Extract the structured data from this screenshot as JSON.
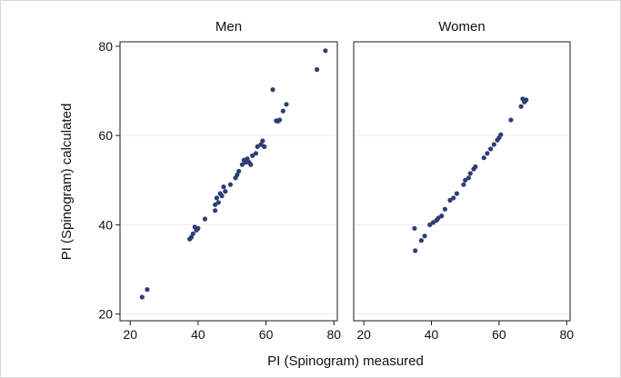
{
  "chart_data": {
    "type": "scatter",
    "xlabel": "PI (Spinogram) measured",
    "ylabel": "PI (Spinogram) calculated",
    "xlim": [
      20,
      80
    ],
    "ylim": [
      20,
      80
    ],
    "xticks": [
      "20",
      "40",
      "60",
      "80"
    ],
    "yticks": [
      "20",
      "40",
      "60",
      "80"
    ],
    "grid": true,
    "marker_color": "#2c3e73",
    "panels": [
      {
        "title": "Men",
        "points": [
          [
            23.5,
            23.8
          ],
          [
            25,
            25.5
          ],
          [
            37.5,
            36.8
          ],
          [
            38,
            37.2
          ],
          [
            38.5,
            38
          ],
          [
            39,
            39.5
          ],
          [
            39.5,
            38.8
          ],
          [
            40,
            39.2
          ],
          [
            42,
            41.3
          ],
          [
            45,
            43.2
          ],
          [
            45,
            44.5
          ],
          [
            45.5,
            46
          ],
          [
            46,
            45
          ],
          [
            46.5,
            47
          ],
          [
            47,
            46.5
          ],
          [
            47.5,
            48.5
          ],
          [
            48,
            47.5
          ],
          [
            49.5,
            49
          ],
          [
            51,
            50.5
          ],
          [
            51.5,
            51.2
          ],
          [
            52,
            52
          ],
          [
            53,
            53.5
          ],
          [
            53.5,
            54.5
          ],
          [
            54,
            54
          ],
          [
            54.5,
            54.8
          ],
          [
            55,
            54
          ],
          [
            55.5,
            53.5
          ],
          [
            56,
            55.5
          ],
          [
            57,
            56
          ],
          [
            57.5,
            57.5
          ],
          [
            58.5,
            58
          ],
          [
            59,
            58.8
          ],
          [
            59.5,
            57.5
          ],
          [
            62,
            70.3
          ],
          [
            63,
            63.3
          ],
          [
            63.5,
            63.2
          ],
          [
            64,
            63.5
          ],
          [
            65,
            65.5
          ],
          [
            66,
            67
          ],
          [
            75,
            74.8
          ],
          [
            77.5,
            79
          ]
        ]
      },
      {
        "title": "Women",
        "points": [
          [
            35,
            39.2
          ],
          [
            35.2,
            34.2
          ],
          [
            37,
            36.5
          ],
          [
            38,
            37.5
          ],
          [
            39.5,
            40
          ],
          [
            40.5,
            40.5
          ],
          [
            41.5,
            41
          ],
          [
            42,
            41.5
          ],
          [
            43,
            42
          ],
          [
            44,
            43.5
          ],
          [
            45.5,
            45.5
          ],
          [
            46.5,
            46
          ],
          [
            47.5,
            47
          ],
          [
            49.5,
            49
          ],
          [
            50,
            50
          ],
          [
            51,
            50.5
          ],
          [
            51.5,
            51.5
          ],
          [
            52.5,
            52.5
          ],
          [
            53,
            53
          ],
          [
            55.5,
            55
          ],
          [
            56.5,
            56
          ],
          [
            57.5,
            57
          ],
          [
            58.5,
            58
          ],
          [
            59.5,
            59
          ],
          [
            60,
            59.5
          ],
          [
            60.5,
            60.2
          ],
          [
            63.5,
            63.5
          ],
          [
            66.5,
            66.5
          ],
          [
            67,
            68.2
          ],
          [
            67.5,
            67.5
          ],
          [
            68,
            68
          ]
        ]
      }
    ]
  }
}
